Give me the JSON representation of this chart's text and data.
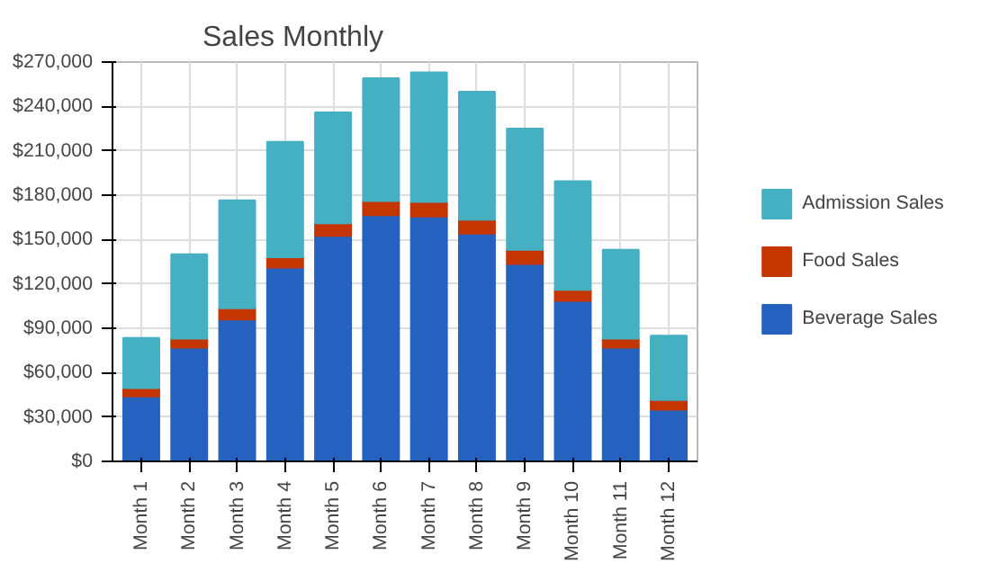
{
  "chart_data": {
    "type": "bar",
    "title": "Sales Monthly",
    "stacked": true,
    "categories": [
      "Month 1",
      "Month 2",
      "Month 3",
      "Month 4",
      "Month 5",
      "Month 6",
      "Month 7",
      "Month 8",
      "Month 9",
      "Month 10",
      "Month 11",
      "Month 12"
    ],
    "series": [
      {
        "name": "Beverage Sales",
        "color": "#2562c0",
        "values": [
          44000,
          77000,
          96000,
          131000,
          152500,
          166500,
          165500,
          154000,
          133500,
          108500,
          77000,
          35000
        ]
      },
      {
        "name": "Food Sales",
        "color": "#c43500",
        "values": [
          5500,
          6000,
          7500,
          7000,
          8500,
          9500,
          10000,
          9500,
          9500,
          7500,
          6000,
          6500
        ]
      },
      {
        "name": "Admission Sales",
        "color": "#45b0c2",
        "values": [
          34000,
          57000,
          73000,
          78000,
          75000,
          83000,
          87500,
          86500,
          82000,
          73500,
          60000,
          43500
        ]
      }
    ],
    "ylim": [
      0,
      270000
    ],
    "yticks": [
      {
        "value": 0,
        "label": "$0"
      },
      {
        "value": 30000,
        "label": "$30,000"
      },
      {
        "value": 60000,
        "label": "$60,000"
      },
      {
        "value": 90000,
        "label": "$90,000"
      },
      {
        "value": 120000,
        "label": "$120,000"
      },
      {
        "value": 150000,
        "label": "$150,000"
      },
      {
        "value": 180000,
        "label": "$180,000"
      },
      {
        "value": 210000,
        "label": "$210,000"
      },
      {
        "value": 240000,
        "label": "$240,000"
      },
      {
        "value": 270000,
        "label": "$270,000"
      }
    ],
    "grid": true,
    "legend": "right"
  }
}
